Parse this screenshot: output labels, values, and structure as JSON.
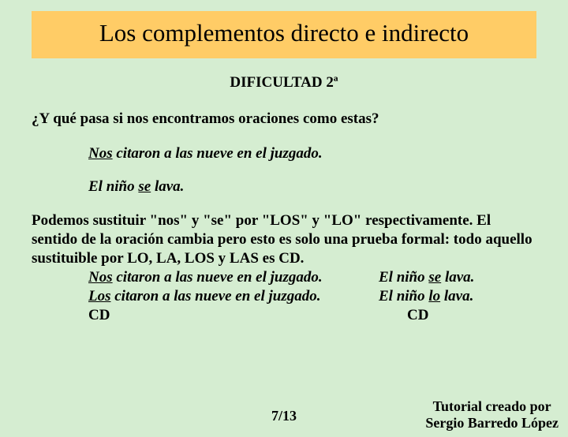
{
  "title": "Los complementos directo e indirecto",
  "difficulty": "DIFICULTAD 2ª",
  "question": "¿Y qué pasa si nos encontramos oraciones como estas?",
  "example1_ul": "Nos",
  "example1_rest": " citaron a las nueve en el juzgado.",
  "example2_pre": "El niño ",
  "example2_ul": "se",
  "example2_post": " lava.",
  "explain": "Podemos sustituir \"nos\" y \"se\" por \"LOS\" y \"LO\" respectivamente. El sentido de la oración cambia pero esto es solo una prueba formal: todo aquello sustituible por LO, LA, LOS y LAS es CD.",
  "leftRow1_ul": "Nos",
  "leftRow1_rest": " citaron a las nueve en el juzgado.",
  "leftRow2_ul": "Los",
  "leftRow2_rest": " citaron a las nueve en el juzgado.",
  "left_cd": "CD",
  "rightRow1_pre": "El niño ",
  "rightRow1_ul": "se",
  "rightRow1_post": " lava.",
  "rightRow2_pre": "El niño ",
  "rightRow2_ul": "lo",
  "rightRow2_post": " lava.",
  "right_cd": "CD",
  "page": "7/13",
  "credit1": "Tutorial creado por",
  "credit2": "Sergio Barredo López",
  "colors": {
    "page_bg": "#d5edd1",
    "title_bg": "#ffcc66",
    "text": "#000000"
  }
}
